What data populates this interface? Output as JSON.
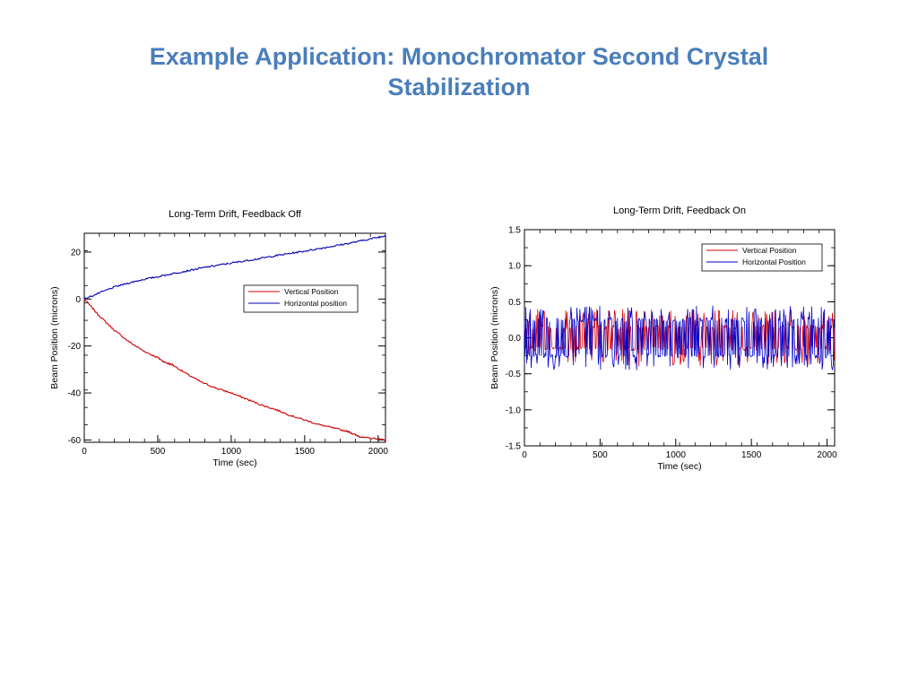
{
  "slide": {
    "title_line1": "Example Application: Monochromator Second Crystal",
    "title_line2": "Stabilization"
  },
  "chart_data": [
    {
      "type": "line",
      "title": "Long-Term Drift, Feedback Off",
      "xlabel": "Time (sec)",
      "ylabel": "Beam Position (microns)",
      "xlim": [
        0,
        2050
      ],
      "ylim": [
        -61,
        28
      ],
      "xticks": [
        0,
        500,
        1000,
        1500,
        2000
      ],
      "xtick_labels": [
        "0",
        "500",
        "1000",
        "1500",
        "2000"
      ],
      "yticks": [
        20,
        0,
        -20,
        -40,
        -60
      ],
      "ytick_labels": [
        "20",
        "0",
        "-20",
        "-40",
        "-60"
      ],
      "grid": false,
      "legend_position": "right",
      "series": [
        {
          "name": "Vertical Position",
          "color": "#cc0000",
          "x": [
            0,
            100,
            200,
            300,
            400,
            500,
            550,
            600,
            700,
            800,
            900,
            1000,
            1100,
            1200,
            1300,
            1400,
            1500,
            1600,
            1700,
            1800,
            1850,
            1900,
            2000,
            2050
          ],
          "y": [
            0,
            -7,
            -13,
            -18,
            -22,
            -25,
            -27,
            -28,
            -32,
            -35.5,
            -38,
            -40,
            -42.5,
            -45,
            -47,
            -49.5,
            -51.5,
            -53.5,
            -55,
            -56.5,
            -58,
            -59,
            -59.5,
            -60
          ]
        },
        {
          "name": "Horizontal position",
          "color": "#0000b0",
          "x": [
            0,
            100,
            200,
            300,
            400,
            500,
            600,
            700,
            800,
            900,
            1000,
            1100,
            1200,
            1300,
            1400,
            1500,
            1600,
            1700,
            1800,
            1900,
            2000,
            2050
          ],
          "y": [
            0,
            2.5,
            5,
            6.8,
            8.3,
            9.5,
            10.8,
            12,
            13.2,
            14.3,
            15.3,
            16.3,
            17.3,
            18.4,
            19.4,
            20.4,
            21.5,
            22.6,
            23.7,
            25,
            26.3,
            27
          ]
        }
      ]
    },
    {
      "type": "line",
      "title": "Long-Term Drift, Feedback On",
      "xlabel": "Time (sec)",
      "ylabel": "Beam Position (microns)",
      "xlim": [
        0,
        2050
      ],
      "ylim": [
        -1.5,
        1.5
      ],
      "xticks": [
        0,
        500,
        1000,
        1500,
        2000
      ],
      "xtick_labels": [
        "0",
        "500",
        "1000",
        "1500",
        "2000"
      ],
      "yticks": [
        1.5,
        1.0,
        0.5,
        0.0,
        -0.5,
        -1.0,
        -1.5
      ],
      "ytick_labels": [
        "1.5",
        "1.0",
        "0.5",
        "0.0",
        "-0.5",
        "-1.0",
        "-1.5"
      ],
      "grid": false,
      "legend_position": "top-right",
      "series": [
        {
          "name": "Vertical Position",
          "color": "#dd0000",
          "x_start": 0,
          "x_end": 2050,
          "level_low": -0.15,
          "level_high": 0.15,
          "spike_min": -0.4,
          "spike_max": 0.4
        },
        {
          "name": "Horizontal Position",
          "color": "#0000cc",
          "x_start": 0,
          "x_end": 2050,
          "level_low": -0.25,
          "level_high": 0.25,
          "spike_min": -0.45,
          "spike_max": 0.45
        }
      ]
    }
  ]
}
